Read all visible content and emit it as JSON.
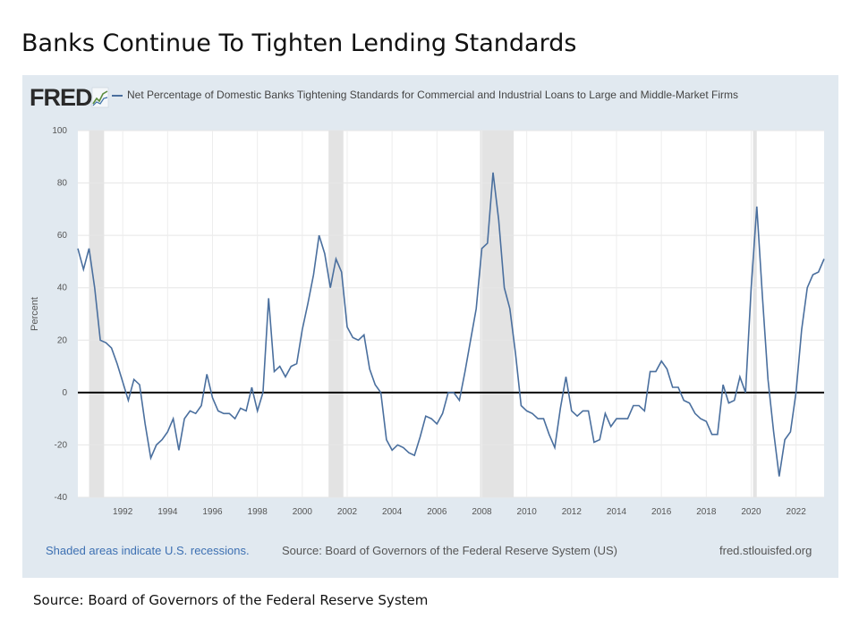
{
  "slide": {
    "title": "Banks Continue To Tighten Lending Standards",
    "source": "Source: Board of Governors of the Federal Reserve System"
  },
  "fred": {
    "logo_text": "FRED",
    "series_title": "Net Percentage of Domestic Banks Tightening Standards for Commercial and Industrial Loans to Large and Middle-Market Firms",
    "footer_recession": "Shaded areas indicate U.S. recessions.",
    "footer_source": "Source: Board of Governors of the Federal Reserve System (US)",
    "footer_url": "fred.stlouisfed.org"
  },
  "colors": {
    "line": "#4a6f9e",
    "recession": "#e3e3e3",
    "panel": "#e1e9f0",
    "zero_line": "#000000"
  },
  "chart_data": {
    "type": "line",
    "title": "Net Percentage of Domestic Banks Tightening Standards for Commercial and Industrial Loans to Large and Middle-Market Firms",
    "xlabel": "",
    "ylabel": "Percent",
    "xlim": [
      1990.0,
      2023.25
    ],
    "ylim": [
      -40,
      100
    ],
    "xticks": [
      1992,
      1994,
      1996,
      1998,
      2000,
      2002,
      2004,
      2006,
      2008,
      2010,
      2012,
      2014,
      2016,
      2018,
      2020,
      2022
    ],
    "yticks": [
      -40,
      -20,
      0,
      20,
      40,
      60,
      80,
      100
    ],
    "grid": true,
    "recessions": [
      [
        1990.5,
        1991.17
      ],
      [
        2001.17,
        2001.83
      ],
      [
        2007.92,
        2009.42
      ],
      [
        2020.08,
        2020.25
      ]
    ],
    "series": [
      {
        "name": "",
        "points": [
          [
            1990.0,
            55
          ],
          [
            1990.25,
            47
          ],
          [
            1990.5,
            55
          ],
          [
            1990.75,
            40
          ],
          [
            1991.0,
            20
          ],
          [
            1991.25,
            19
          ],
          [
            1991.5,
            17
          ],
          [
            1991.75,
            11
          ],
          [
            1992.0,
            4
          ],
          [
            1992.25,
            -3
          ],
          [
            1992.5,
            5
          ],
          [
            1992.75,
            3
          ],
          [
            1993.0,
            -12
          ],
          [
            1993.25,
            -25
          ],
          [
            1993.5,
            -20
          ],
          [
            1993.75,
            -18
          ],
          [
            1994.0,
            -15
          ],
          [
            1994.25,
            -10
          ],
          [
            1994.5,
            -22
          ],
          [
            1994.75,
            -10
          ],
          [
            1995.0,
            -7
          ],
          [
            1995.25,
            -8
          ],
          [
            1995.5,
            -5
          ],
          [
            1995.75,
            7
          ],
          [
            1996.0,
            -2
          ],
          [
            1996.25,
            -7
          ],
          [
            1996.5,
            -8
          ],
          [
            1996.75,
            -8
          ],
          [
            1997.0,
            -10
          ],
          [
            1997.25,
            -6
          ],
          [
            1997.5,
            -7
          ],
          [
            1997.75,
            2
          ],
          [
            1998.0,
            -7
          ],
          [
            1998.25,
            0
          ],
          [
            1998.5,
            36
          ],
          [
            1998.75,
            8
          ],
          [
            1999.0,
            10
          ],
          [
            1999.25,
            6
          ],
          [
            1999.5,
            10
          ],
          [
            1999.75,
            11
          ],
          [
            2000.0,
            24
          ],
          [
            2000.25,
            34
          ],
          [
            2000.5,
            45
          ],
          [
            2000.75,
            60
          ],
          [
            2001.0,
            53
          ],
          [
            2001.25,
            40
          ],
          [
            2001.5,
            51
          ],
          [
            2001.75,
            46
          ],
          [
            2002.0,
            25
          ],
          [
            2002.25,
            21
          ],
          [
            2002.5,
            20
          ],
          [
            2002.75,
            22
          ],
          [
            2003.0,
            9
          ],
          [
            2003.25,
            3
          ],
          [
            2003.5,
            0
          ],
          [
            2003.75,
            -18
          ],
          [
            2004.0,
            -22
          ],
          [
            2004.25,
            -20
          ],
          [
            2004.5,
            -21
          ],
          [
            2004.75,
            -23
          ],
          [
            2005.0,
            -24
          ],
          [
            2005.25,
            -17
          ],
          [
            2005.5,
            -9
          ],
          [
            2005.75,
            -10
          ],
          [
            2006.0,
            -12
          ],
          [
            2006.25,
            -8
          ],
          [
            2006.5,
            0
          ],
          [
            2006.75,
            0
          ],
          [
            2007.0,
            -3
          ],
          [
            2007.25,
            8
          ],
          [
            2007.5,
            20
          ],
          [
            2007.75,
            32
          ],
          [
            2008.0,
            55
          ],
          [
            2008.25,
            57
          ],
          [
            2008.5,
            84
          ],
          [
            2008.75,
            66
          ],
          [
            2009.0,
            40
          ],
          [
            2009.25,
            32
          ],
          [
            2009.5,
            15
          ],
          [
            2009.75,
            -5
          ],
          [
            2010.0,
            -7
          ],
          [
            2010.25,
            -8
          ],
          [
            2010.5,
            -10
          ],
          [
            2010.75,
            -10
          ],
          [
            2011.0,
            -16
          ],
          [
            2011.25,
            -21
          ],
          [
            2011.5,
            -6
          ],
          [
            2011.75,
            6
          ],
          [
            2012.0,
            -7
          ],
          [
            2012.25,
            -9
          ],
          [
            2012.5,
            -7
          ],
          [
            2012.75,
            -7
          ],
          [
            2013.0,
            -19
          ],
          [
            2013.25,
            -18
          ],
          [
            2013.5,
            -8
          ],
          [
            2013.75,
            -13
          ],
          [
            2014.0,
            -10
          ],
          [
            2014.25,
            -10
          ],
          [
            2014.5,
            -10
          ],
          [
            2014.75,
            -5
          ],
          [
            2015.0,
            -5
          ],
          [
            2015.25,
            -7
          ],
          [
            2015.5,
            8
          ],
          [
            2015.75,
            8
          ],
          [
            2016.0,
            12
          ],
          [
            2016.25,
            9
          ],
          [
            2016.5,
            2
          ],
          [
            2016.75,
            2
          ],
          [
            2017.0,
            -3
          ],
          [
            2017.25,
            -4
          ],
          [
            2017.5,
            -8
          ],
          [
            2017.75,
            -10
          ],
          [
            2018.0,
            -11
          ],
          [
            2018.25,
            -16
          ],
          [
            2018.5,
            -16
          ],
          [
            2018.75,
            3
          ],
          [
            2019.0,
            -4
          ],
          [
            2019.25,
            -3
          ],
          [
            2019.5,
            6
          ],
          [
            2019.75,
            0
          ],
          [
            2020.0,
            40
          ],
          [
            2020.25,
            71
          ],
          [
            2020.5,
            37
          ],
          [
            2020.75,
            5
          ],
          [
            2021.0,
            -15
          ],
          [
            2021.25,
            -32
          ],
          [
            2021.5,
            -18
          ],
          [
            2021.75,
            -15
          ],
          [
            2022.0,
            0
          ],
          [
            2022.25,
            24
          ],
          [
            2022.5,
            40
          ],
          [
            2022.75,
            45
          ],
          [
            2023.0,
            46
          ],
          [
            2023.25,
            51
          ]
        ]
      }
    ]
  }
}
